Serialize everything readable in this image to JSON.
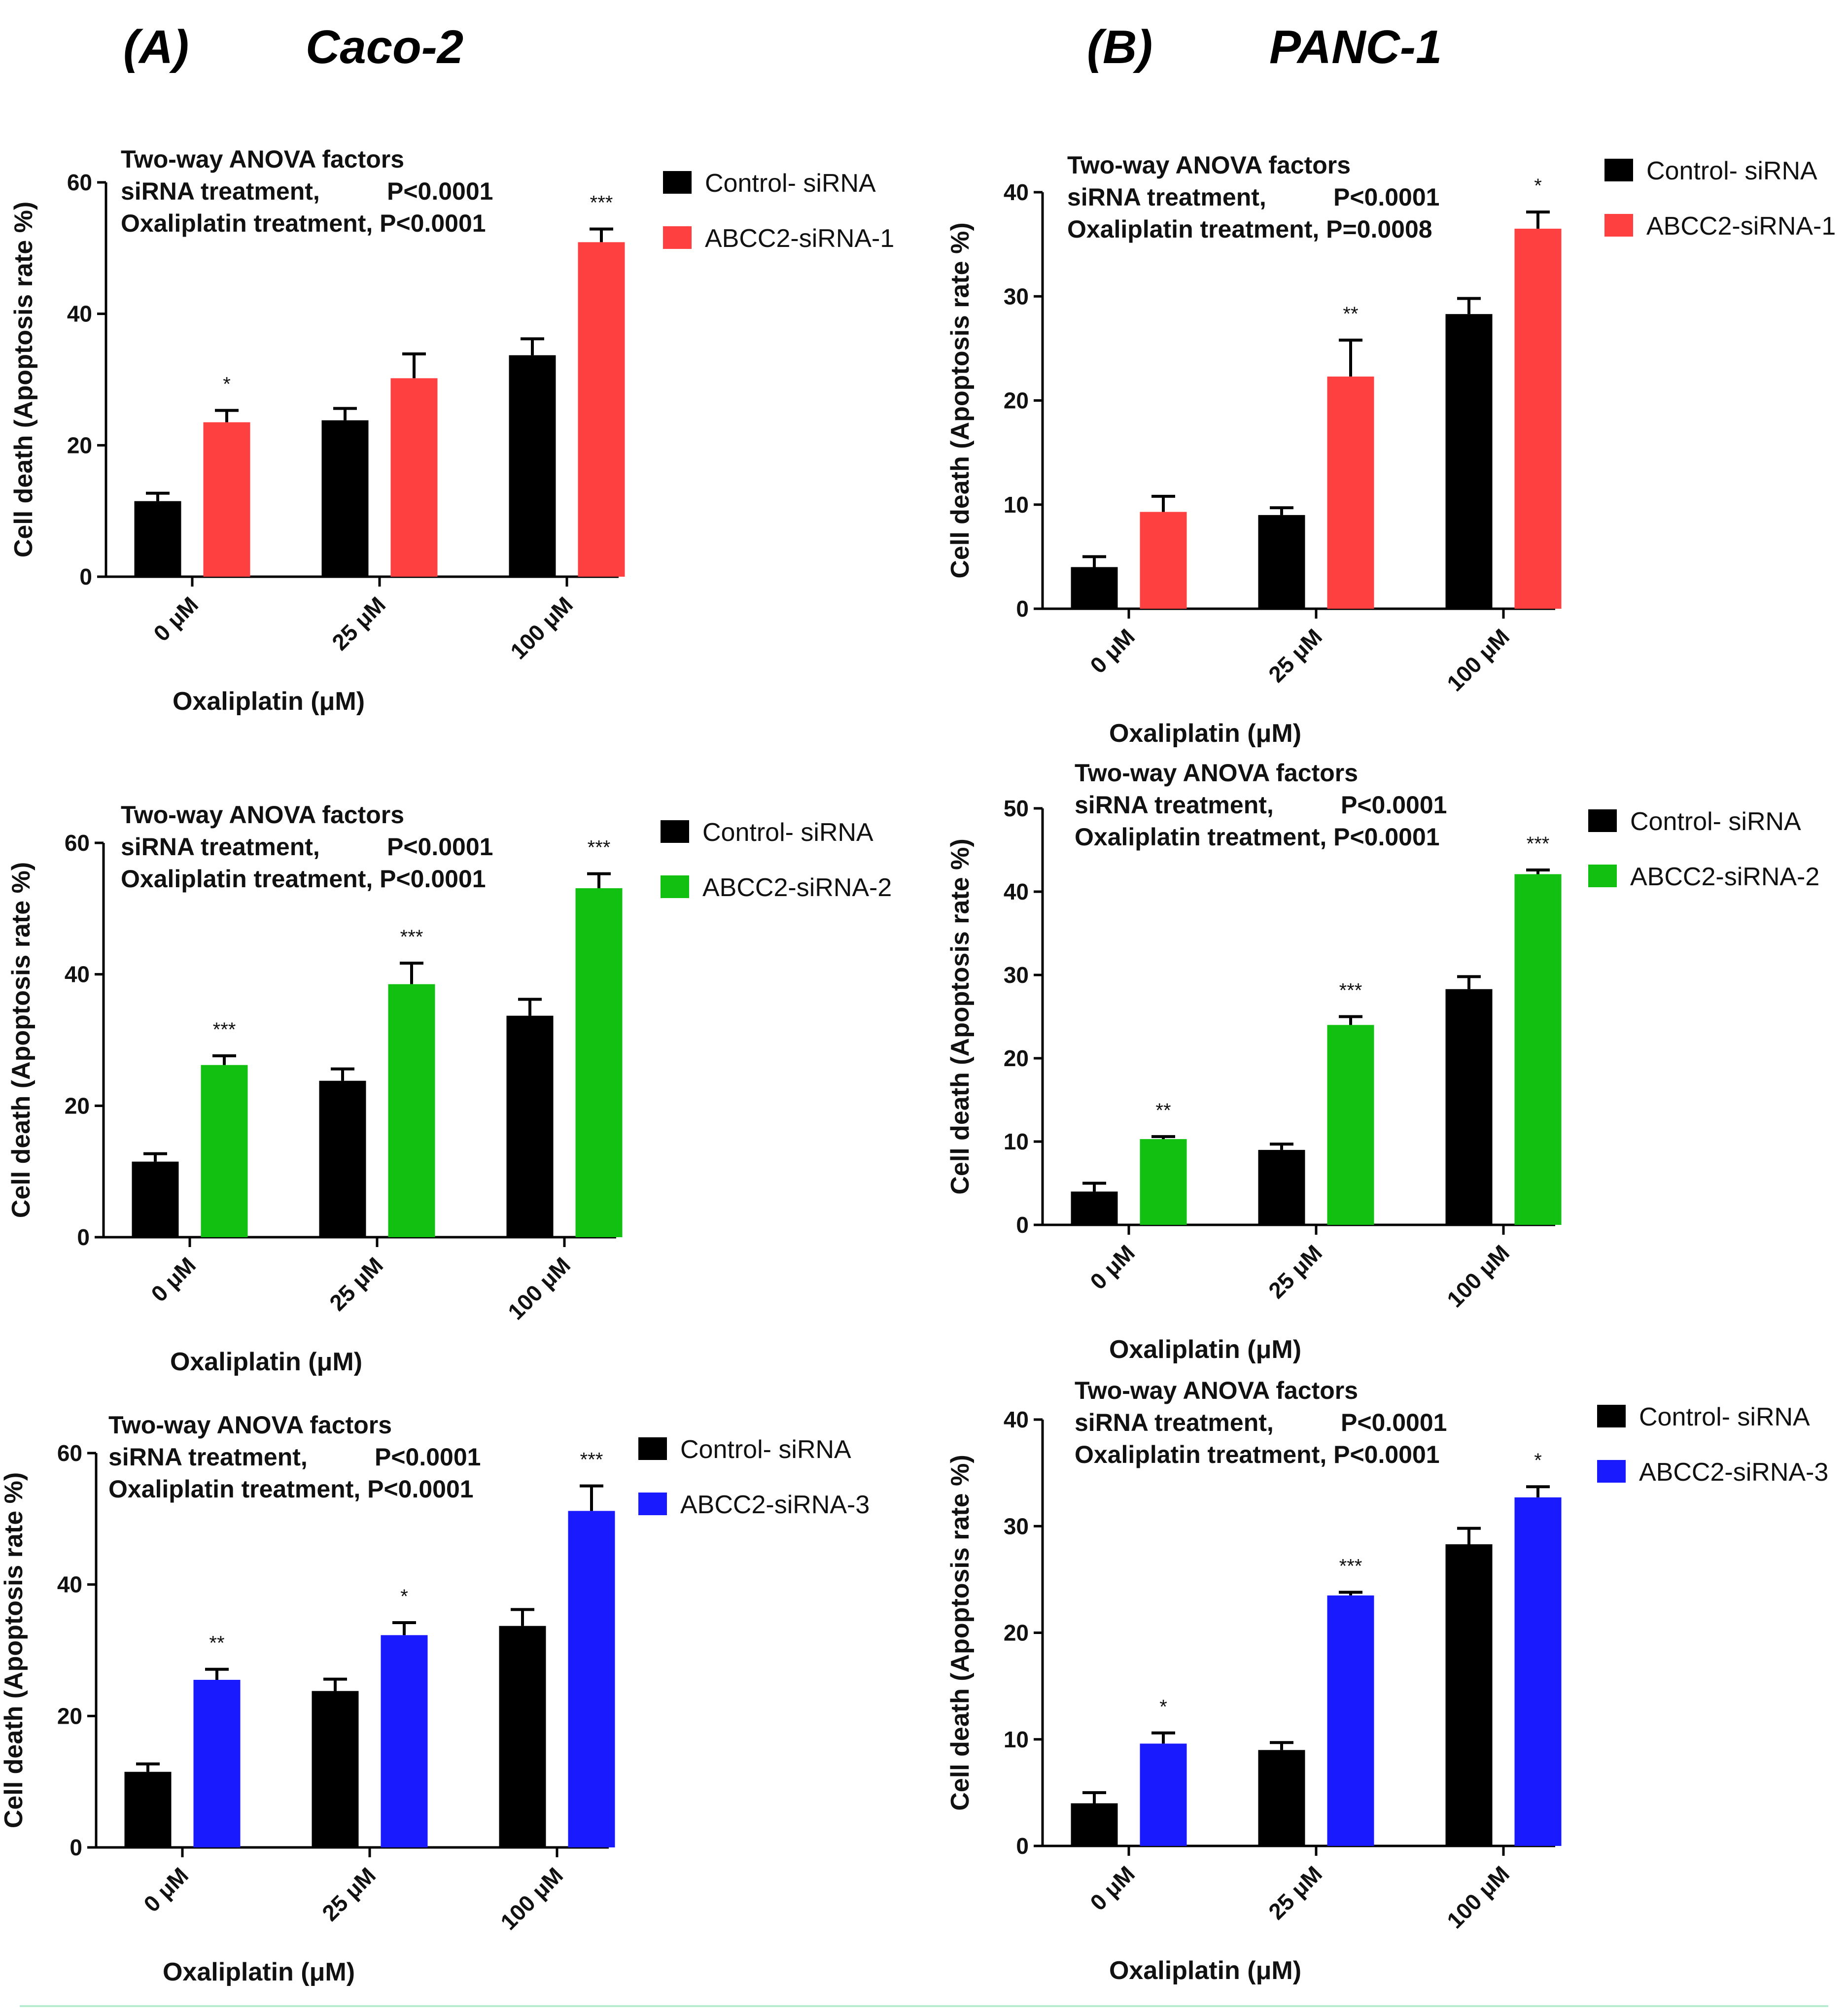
{
  "panel_labels": [
    {
      "letter": "(A)",
      "cell_line": "Caco-2"
    },
    {
      "letter": "(B)",
      "cell_line": "PANC-1"
    }
  ],
  "colors": {
    "control": "#000000",
    "siRNA-1": "#ff4040",
    "siRNA-2": "#12c012",
    "siRNA-3": "#1a1aff",
    "bottom_rule": "#b8ecd0"
  },
  "chart_data": [
    {
      "id": "A1",
      "type": "bar",
      "cell_line": "Caco-2",
      "ylabel": "Cell death (Apoptosis rate %)",
      "xlabel": "Oxaliplatin (μM)",
      "ylim": [
        0,
        60
      ],
      "yticks": [
        0,
        20,
        40,
        60
      ],
      "categories": [
        "0 μM",
        "25 μM",
        "100 μM"
      ],
      "anova": [
        "Two-way ANOVA factors",
        "siRNA treatment,",
        "P<0.0001",
        "Oxaliplatin treatment, P<0.0001"
      ],
      "legend": [
        "Control- siRNA",
        "ABCC2-siRNA-1"
      ],
      "series": [
        {
          "name": "Control- siRNA",
          "color_key": "control",
          "values": [
            11.5,
            23.8,
            33.7
          ],
          "errors": [
            1.2,
            1.8,
            2.5
          ]
        },
        {
          "name": "ABCC2-siRNA-1",
          "color_key": "siRNA-1",
          "values": [
            23.5,
            30.2,
            50.9
          ],
          "errors": [
            1.8,
            3.7,
            2.0
          ]
        }
      ],
      "significance": [
        "*",
        "",
        "***"
      ]
    },
    {
      "id": "B1",
      "type": "bar",
      "cell_line": "PANC-1",
      "ylabel": "Cell death (Apoptosis rate %)",
      "xlabel": "Oxaliplatin (μM)",
      "ylim": [
        0,
        40
      ],
      "yticks": [
        0,
        10,
        20,
        30,
        40
      ],
      "categories": [
        "0 μM",
        "25 μM",
        "100 μM"
      ],
      "anova": [
        "Two-way ANOVA factors",
        "siRNA treatment,",
        "P<0.0001",
        "Oxaliplatin treatment, P=0.0008"
      ],
      "legend": [
        "Control- siRNA",
        "ABCC2-siRNA-1"
      ],
      "series": [
        {
          "name": "Control- siRNA",
          "color_key": "control",
          "values": [
            4.0,
            9.0,
            28.3
          ],
          "errors": [
            1.0,
            0.7,
            1.5
          ]
        },
        {
          "name": "ABCC2-siRNA-1",
          "color_key": "siRNA-1",
          "values": [
            9.3,
            22.3,
            36.5
          ],
          "errors": [
            1.5,
            3.5,
            1.6
          ]
        }
      ],
      "significance": [
        "",
        "**",
        "*"
      ]
    },
    {
      "id": "A2",
      "type": "bar",
      "cell_line": "Caco-2",
      "ylabel": "Cell death (Apoptosis rate %)",
      "xlabel": "Oxaliplatin (μM)",
      "ylim": [
        0,
        60
      ],
      "yticks": [
        0,
        20,
        40,
        60
      ],
      "categories": [
        "0 μM",
        "25 μM",
        "100 μM"
      ],
      "anova": [
        "Two-way ANOVA factors",
        "siRNA treatment,",
        "P<0.0001",
        "Oxaliplatin treatment, P<0.0001"
      ],
      "legend": [
        "Control- siRNA",
        "ABCC2-siRNA-2"
      ],
      "series": [
        {
          "name": "Control- siRNA",
          "color_key": "control",
          "values": [
            11.5,
            23.8,
            33.7
          ],
          "errors": [
            1.2,
            1.8,
            2.5
          ]
        },
        {
          "name": "ABCC2-siRNA-2",
          "color_key": "siRNA-2",
          "values": [
            26.2,
            38.5,
            53.1
          ],
          "errors": [
            1.4,
            3.2,
            2.2
          ]
        }
      ],
      "significance": [
        "***",
        "***",
        "***"
      ]
    },
    {
      "id": "B2",
      "type": "bar",
      "cell_line": "PANC-1",
      "ylabel": "Cell death (Apoptosis rate %)",
      "xlabel": "Oxaliplatin (μM)",
      "ylim": [
        0,
        50
      ],
      "yticks": [
        0,
        10,
        20,
        30,
        40,
        50
      ],
      "categories": [
        "0 μM",
        "25 μM",
        "100 μM"
      ],
      "anova": [
        "Two-way ANOVA factors",
        "siRNA treatment,",
        "P<0.0001",
        "Oxaliplatin treatment, P<0.0001"
      ],
      "legend": [
        "Control- siRNA",
        "ABCC2-siRNA-2"
      ],
      "series": [
        {
          "name": "Control- siRNA",
          "color_key": "control",
          "values": [
            4.0,
            9.0,
            28.3
          ],
          "errors": [
            1.0,
            0.7,
            1.5
          ]
        },
        {
          "name": "ABCC2-siRNA-2",
          "color_key": "siRNA-2",
          "values": [
            10.3,
            24.0,
            42.1
          ],
          "errors": [
            0.3,
            1.0,
            0.5
          ]
        }
      ],
      "significance": [
        "**",
        "***",
        "***"
      ]
    },
    {
      "id": "A3",
      "type": "bar",
      "cell_line": "Caco-2",
      "ylabel": "Cell death (Apoptosis rate %)",
      "xlabel": "Oxaliplatin (μM)",
      "ylim": [
        0,
        60
      ],
      "yticks": [
        0,
        20,
        40,
        60
      ],
      "categories": [
        "0 μM",
        "25 μM",
        "100 μM"
      ],
      "anova": [
        "Two-way ANOVA factors",
        "siRNA treatment,",
        "P<0.0001",
        "Oxaliplatin treatment, P<0.0001"
      ],
      "legend": [
        "Control- siRNA",
        "ABCC2-siRNA-3"
      ],
      "series": [
        {
          "name": "Control- siRNA",
          "color_key": "control",
          "values": [
            11.5,
            23.8,
            33.7
          ],
          "errors": [
            1.2,
            1.8,
            2.5
          ]
        },
        {
          "name": "ABCC2-siRNA-3",
          "color_key": "siRNA-3",
          "values": [
            25.5,
            32.3,
            51.2
          ],
          "errors": [
            1.6,
            1.9,
            3.8
          ]
        }
      ],
      "significance": [
        "**",
        "*",
        "***"
      ]
    },
    {
      "id": "B3",
      "type": "bar",
      "cell_line": "PANC-1",
      "ylabel": "Cell death (Apoptosis rate %)",
      "xlabel": "Oxaliplatin (μM)",
      "ylim": [
        0,
        40
      ],
      "yticks": [
        0,
        10,
        20,
        30,
        40
      ],
      "categories": [
        "0 μM",
        "25 μM",
        "100 μM"
      ],
      "anova": [
        "Two-way ANOVA factors",
        "siRNA treatment,",
        "P<0.0001",
        "Oxaliplatin treatment, P<0.0001"
      ],
      "legend": [
        "Control- siRNA",
        "ABCC2-siRNA-3"
      ],
      "series": [
        {
          "name": "Control- siRNA",
          "color_key": "control",
          "values": [
            4.0,
            9.0,
            28.3
          ],
          "errors": [
            1.0,
            0.7,
            1.5
          ]
        },
        {
          "name": "ABCC2-siRNA-3",
          "color_key": "siRNA-3",
          "values": [
            9.6,
            23.5,
            32.7
          ],
          "errors": [
            1.0,
            0.3,
            1.0
          ]
        }
      ],
      "significance": [
        "*",
        "***",
        "*"
      ]
    }
  ]
}
